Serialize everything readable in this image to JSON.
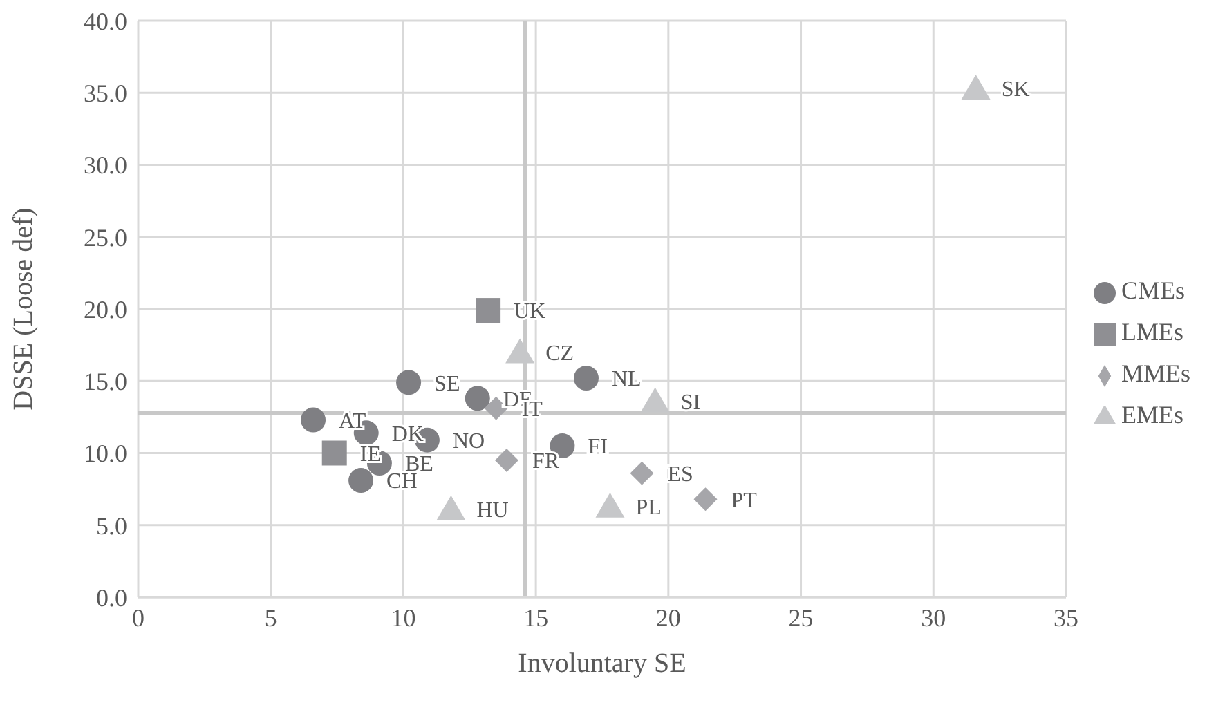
{
  "chart_data": {
    "type": "scatter",
    "xlabel": "Involuntary SE",
    "ylabel": "DSSE (Loose def)",
    "xlim": [
      0,
      35
    ],
    "xticks": [
      0,
      5,
      10,
      15,
      20,
      25,
      30,
      35
    ],
    "ylim": [
      0,
      40
    ],
    "yticks": [
      {
        "value": 0,
        "label": "0.0"
      },
      {
        "value": 5,
        "label": "5.0"
      },
      {
        "value": 10,
        "label": "10.0"
      },
      {
        "value": 15,
        "label": "15.0"
      },
      {
        "value": 20,
        "label": "20.0"
      },
      {
        "value": 25,
        "label": "25.0"
      },
      {
        "value": 30,
        "label": "30.0"
      },
      {
        "value": 35,
        "label": "35.0"
      },
      {
        "value": 40,
        "label": "40.0"
      }
    ],
    "grid": true,
    "legend": "right",
    "ref_lines": [
      {
        "axis": "x",
        "value": 14.6,
        "color": "#c8c8c8"
      },
      {
        "axis": "y",
        "value": 12.8,
        "color": "#c8c8c8"
      }
    ],
    "series": [
      {
        "name": "CMEs",
        "color": "#7f7f83",
        "marker": "circle",
        "x": [
          6.6,
          8.6,
          10.9,
          9.1,
          8.4,
          10.2,
          12.8,
          16.9,
          16.0
        ],
        "values": [
          12.3,
          11.4,
          10.9,
          9.3,
          8.1,
          14.9,
          13.8,
          15.2,
          10.5
        ],
        "value_labels": [
          "AT",
          "DK",
          "NO",
          "BE",
          "CH",
          "SE",
          "DE",
          "NL",
          "FI"
        ]
      },
      {
        "name": "LMEs",
        "color": "#8f8f93",
        "marker": "square",
        "x": [
          13.2,
          7.4
        ],
        "values": [
          19.9,
          10.0
        ],
        "value_labels": [
          "UK",
          "IE"
        ]
      },
      {
        "name": "MMEs",
        "color": "#a6a6aa",
        "marker": "diamond",
        "x": [
          13.5,
          13.9,
          19.0,
          21.4
        ],
        "values": [
          13.1,
          9.5,
          8.6,
          6.8
        ],
        "value_labels": [
          "IT",
          "FR",
          "ES",
          "PT"
        ]
      },
      {
        "name": "EMEs",
        "color": "#c6c7c9",
        "marker": "triangle",
        "x": [
          14.4,
          19.5,
          31.6,
          11.8,
          17.8
        ],
        "values": [
          17.0,
          13.6,
          35.3,
          6.1,
          6.3
        ],
        "value_labels": [
          "CZ",
          "SI",
          "SK",
          "HU",
          "PL"
        ]
      }
    ]
  }
}
